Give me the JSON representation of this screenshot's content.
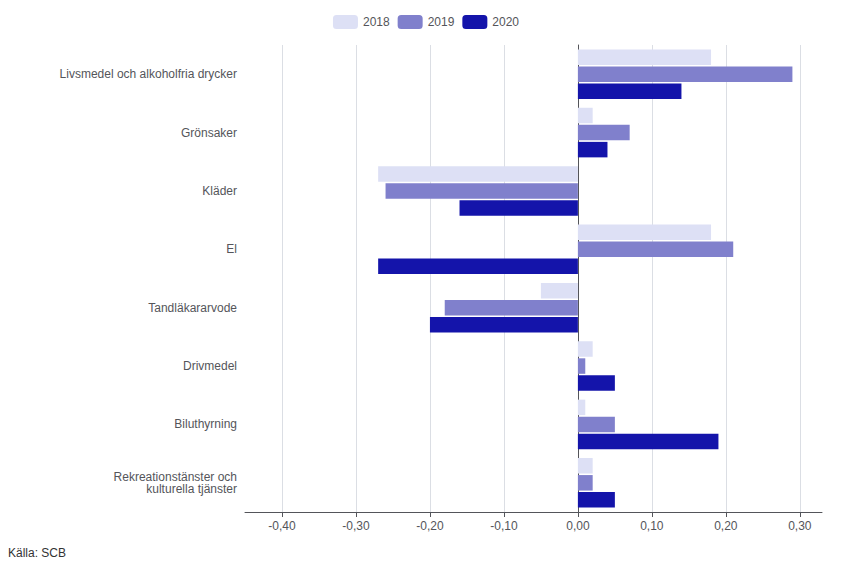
{
  "chart_data": {
    "type": "bar",
    "orientation": "horizontal",
    "categories": [
      "Livsmedel och alkoholfria drycker",
      "Grönsaker",
      "Kläder",
      "El",
      "Tandläkararvode",
      "Drivmedel",
      "Biluthyrning",
      "Rekreationstänster och\nkulturella tjänster"
    ],
    "series": [
      {
        "name": "2018",
        "color": "#dde0f5",
        "values": [
          0.18,
          0.02,
          -0.27,
          0.18,
          -0.05,
          0.02,
          0.01,
          0.02
        ]
      },
      {
        "name": "2019",
        "color": "#8080cc",
        "values": [
          0.29,
          0.07,
          -0.26,
          0.21,
          -0.18,
          0.01,
          0.05,
          0.02
        ]
      },
      {
        "name": "2020",
        "color": "#1414aa",
        "values": [
          0.14,
          0.04,
          -0.16,
          -0.27,
          -0.2,
          0.05,
          0.19,
          0.05
        ]
      }
    ],
    "xlim": [
      -0.45,
      0.33
    ],
    "xticks": [
      {
        "value": -0.4,
        "label": "-0,40"
      },
      {
        "value": -0.3,
        "label": "-0,30"
      },
      {
        "value": -0.2,
        "label": "-0,20"
      },
      {
        "value": -0.1,
        "label": "-0,10"
      },
      {
        "value": 0.0,
        "label": "0,00"
      },
      {
        "value": 0.1,
        "label": "0,10"
      },
      {
        "value": 0.2,
        "label": "0,20"
      },
      {
        "value": 0.3,
        "label": "0,30"
      }
    ],
    "grid": true,
    "legend": "top",
    "annotation": "Källa: SCB"
  }
}
